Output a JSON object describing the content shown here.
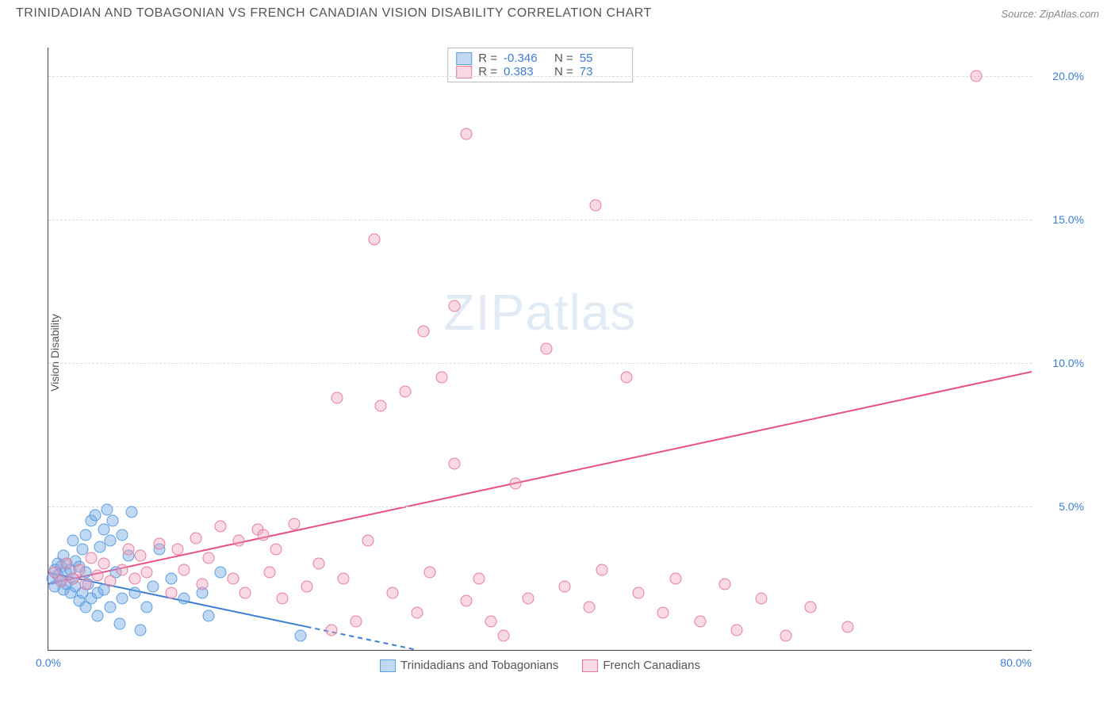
{
  "header": {
    "title": "TRINIDADIAN AND TOBAGONIAN VS FRENCH CANADIAN VISION DISABILITY CORRELATION CHART",
    "source": "Source: ZipAtlas.com"
  },
  "chart": {
    "type": "scatter",
    "ylabel": "Vision Disability",
    "xlim": [
      0,
      80
    ],
    "ylim": [
      0,
      21
    ],
    "x_ticks": [
      {
        "v": 0,
        "label": "0.0%"
      },
      {
        "v": 80,
        "label": "80.0%"
      }
    ],
    "y_ticks": [
      {
        "v": 5,
        "label": "5.0%"
      },
      {
        "v": 10,
        "label": "10.0%"
      },
      {
        "v": 15,
        "label": "15.0%"
      },
      {
        "v": 20,
        "label": "20.0%"
      }
    ],
    "grid_color": "#dddddd",
    "background_color": "#ffffff",
    "axis_color": "#444444",
    "tick_label_color": "#3b7dd8",
    "watermark": "ZIPatlas",
    "series": [
      {
        "name": "Trinidadians and Tobagonians",
        "color_fill": "rgba(120,170,230,0.45)",
        "color_stroke": "#5a9de0",
        "R_label": "R =",
        "R": "-0.346",
        "N_label": "N =",
        "N": "55",
        "trend": {
          "x1": 0,
          "y1": 2.7,
          "x2": 30,
          "y2": 0.0,
          "solid_until_x": 21,
          "color": "#3b7dd8",
          "width": 2
        },
        "points": [
          [
            0.3,
            2.5
          ],
          [
            0.5,
            2.8
          ],
          [
            0.5,
            2.2
          ],
          [
            0.8,
            2.6
          ],
          [
            0.8,
            3.0
          ],
          [
            1.0,
            2.4
          ],
          [
            1.0,
            2.9
          ],
          [
            1.2,
            2.1
          ],
          [
            1.2,
            3.3
          ],
          [
            1.4,
            2.7
          ],
          [
            1.5,
            2.3
          ],
          [
            1.5,
            3.0
          ],
          [
            1.8,
            2.0
          ],
          [
            1.8,
            2.8
          ],
          [
            2.0,
            2.5
          ],
          [
            2.0,
            3.8
          ],
          [
            2.2,
            2.2
          ],
          [
            2.2,
            3.1
          ],
          [
            2.5,
            1.7
          ],
          [
            2.5,
            2.9
          ],
          [
            2.8,
            2.0
          ],
          [
            2.8,
            3.5
          ],
          [
            3.0,
            1.5
          ],
          [
            3.0,
            2.7
          ],
          [
            3.2,
            2.3
          ],
          [
            3.5,
            1.8
          ],
          [
            3.5,
            4.5
          ],
          [
            3.8,
            4.7
          ],
          [
            4.0,
            2.0
          ],
          [
            4.0,
            1.2
          ],
          [
            4.2,
            3.6
          ],
          [
            4.5,
            2.1
          ],
          [
            4.5,
            4.2
          ],
          [
            5.0,
            1.5
          ],
          [
            5.0,
            3.8
          ],
          [
            5.2,
            4.5
          ],
          [
            5.5,
            2.7
          ],
          [
            5.8,
            0.9
          ],
          [
            6.0,
            1.8
          ],
          [
            6.0,
            4.0
          ],
          [
            6.5,
            3.3
          ],
          [
            7.0,
            2.0
          ],
          [
            7.5,
            0.7
          ],
          [
            8.0,
            1.5
          ],
          [
            8.5,
            2.2
          ],
          [
            9.0,
            3.5
          ],
          [
            10.0,
            2.5
          ],
          [
            11.0,
            1.8
          ],
          [
            12.5,
            2.0
          ],
          [
            14.0,
            2.7
          ],
          [
            6.8,
            4.8
          ],
          [
            4.8,
            4.9
          ],
          [
            3.0,
            4.0
          ],
          [
            20.5,
            0.5
          ],
          [
            13.0,
            1.2
          ]
        ]
      },
      {
        "name": "French Canadians",
        "color_fill": "rgba(240,160,185,0.4)",
        "color_stroke": "#e67ba0",
        "R_label": "R =",
        "R": "0.383",
        "N_label": "N =",
        "N": "73",
        "trend": {
          "x1": 0,
          "y1": 2.3,
          "x2": 80,
          "y2": 9.7,
          "solid_until_x": 80,
          "color": "#e84f8a",
          "width": 2
        },
        "points": [
          [
            0.5,
            2.7
          ],
          [
            1.0,
            2.4
          ],
          [
            1.5,
            3.0
          ],
          [
            2.0,
            2.5
          ],
          [
            2.5,
            2.8
          ],
          [
            3.0,
            2.3
          ],
          [
            3.5,
            3.2
          ],
          [
            4.0,
            2.6
          ],
          [
            4.5,
            3.0
          ],
          [
            5.0,
            2.4
          ],
          [
            6.0,
            2.8
          ],
          [
            7.0,
            2.5
          ],
          [
            7.5,
            3.3
          ],
          [
            8.0,
            2.7
          ],
          [
            9.0,
            3.7
          ],
          [
            10.0,
            2.0
          ],
          [
            10.5,
            3.5
          ],
          [
            11.0,
            2.8
          ],
          [
            12.0,
            3.9
          ],
          [
            12.5,
            2.3
          ],
          [
            13.0,
            3.2
          ],
          [
            14.0,
            4.3
          ],
          [
            15.0,
            2.5
          ],
          [
            15.5,
            3.8
          ],
          [
            16.0,
            2.0
          ],
          [
            17.0,
            4.2
          ],
          [
            18.0,
            2.7
          ],
          [
            18.5,
            3.5
          ],
          [
            19.0,
            1.8
          ],
          [
            20.0,
            4.4
          ],
          [
            21.0,
            2.2
          ],
          [
            22.0,
            3.0
          ],
          [
            23.0,
            0.7
          ],
          [
            24.0,
            2.5
          ],
          [
            25.0,
            1.0
          ],
          [
            26.0,
            3.8
          ],
          [
            27.0,
            8.5
          ],
          [
            28.0,
            2.0
          ],
          [
            29.0,
            9.0
          ],
          [
            30.0,
            1.3
          ],
          [
            30.5,
            11.1
          ],
          [
            31.0,
            2.7
          ],
          [
            32.0,
            9.5
          ],
          [
            33.0,
            6.5
          ],
          [
            34.0,
            1.7
          ],
          [
            35.0,
            2.5
          ],
          [
            36.0,
            1.0
          ],
          [
            37.0,
            0.5
          ],
          [
            38.0,
            5.8
          ],
          [
            34.0,
            18.0
          ],
          [
            39.0,
            1.8
          ],
          [
            40.5,
            10.5
          ],
          [
            42.0,
            2.2
          ],
          [
            44.0,
            1.5
          ],
          [
            44.5,
            15.5
          ],
          [
            45.0,
            2.8
          ],
          [
            47.0,
            9.5
          ],
          [
            48.0,
            2.0
          ],
          [
            50.0,
            1.3
          ],
          [
            51.0,
            2.5
          ],
          [
            53.0,
            1.0
          ],
          [
            55.0,
            2.3
          ],
          [
            56.0,
            0.7
          ],
          [
            58.0,
            1.8
          ],
          [
            26.5,
            14.3
          ],
          [
            60.0,
            0.5
          ],
          [
            62.0,
            1.5
          ],
          [
            65.0,
            0.8
          ],
          [
            33.0,
            12.0
          ],
          [
            75.5,
            20.0
          ],
          [
            23.5,
            8.8
          ],
          [
            17.5,
            4.0
          ],
          [
            6.5,
            3.5
          ]
        ]
      }
    ],
    "legend": {
      "series1_label": "Trinidadians and Tobagonians",
      "series2_label": "French Canadians"
    }
  }
}
